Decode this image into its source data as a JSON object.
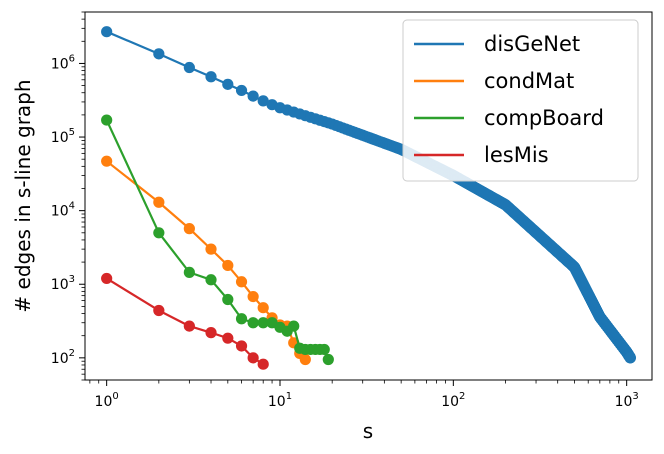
{
  "chart_data": {
    "type": "line",
    "xlabel": "s",
    "ylabel": "# edges in s-line graph",
    "xscale": "log",
    "yscale": "log",
    "xlim": [
      0.75,
      1400
    ],
    "ylim": [
      50,
      5000000
    ],
    "grid": false,
    "legend_position": "top-right",
    "x_ticks": [
      {
        "value": 1,
        "base": "10",
        "exp": "0"
      },
      {
        "value": 10,
        "base": "10",
        "exp": "1"
      },
      {
        "value": 100,
        "base": "10",
        "exp": "2"
      },
      {
        "value": 1000,
        "base": "10",
        "exp": "3"
      }
    ],
    "y_ticks": [
      {
        "value": 100,
        "base": "10",
        "exp": "2"
      },
      {
        "value": 1000,
        "base": "10",
        "exp": "3"
      },
      {
        "value": 10000,
        "base": "10",
        "exp": "4"
      },
      {
        "value": 100000,
        "base": "10",
        "exp": "5"
      },
      {
        "value": 1000000,
        "base": "10",
        "exp": "6"
      }
    ],
    "series": [
      {
        "name": "disGeNet",
        "color": "#1f77b4",
        "x_range": [
          1,
          1050
        ],
        "anchor_x": [
          1,
          2,
          3,
          4,
          5,
          6,
          7,
          8,
          9,
          10,
          20,
          50,
          100,
          200,
          500,
          700,
          1000,
          1050
        ],
        "anchor_y": [
          2700000,
          1350000,
          880000,
          660000,
          520000,
          430000,
          360000,
          310000,
          275000,
          250000,
          150000,
          68000,
          30000,
          12000,
          1700,
          360,
          120,
          100
        ]
      },
      {
        "name": "condMat",
        "color": "#ff7f0e",
        "x": [
          1,
          2,
          3,
          4,
          5,
          6,
          7,
          8,
          9,
          10,
          11,
          12,
          13,
          14
        ],
        "y": [
          47000,
          13000,
          5700,
          3000,
          1800,
          1080,
          680,
          480,
          350,
          280,
          270,
          160,
          115,
          95
        ]
      },
      {
        "name": "compBoard",
        "color": "#2ca02c",
        "x": [
          1,
          2,
          3,
          4,
          5,
          6,
          7,
          8,
          9,
          10,
          11,
          12,
          13,
          14,
          15,
          16,
          17,
          18,
          19
        ],
        "y": [
          170000,
          5000,
          1450,
          1150,
          620,
          340,
          300,
          300,
          300,
          260,
          230,
          270,
          135,
          130,
          130,
          130,
          130,
          130,
          95
        ]
      },
      {
        "name": "lesMis",
        "color": "#d62728",
        "x": [
          1,
          2,
          3,
          4,
          5,
          6,
          7,
          8
        ],
        "y": [
          1200,
          440,
          270,
          220,
          185,
          145,
          100,
          82
        ]
      }
    ]
  }
}
